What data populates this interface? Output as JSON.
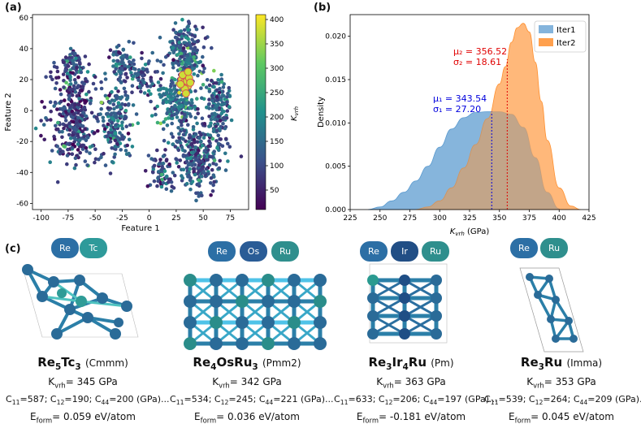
{
  "panel_labels": {
    "a": "(a)",
    "b": "(b)",
    "c": "(c)"
  },
  "chart_data": [
    {
      "type": "scatter",
      "panel": "(a)",
      "xlabel": "Feature 1",
      "ylabel": "Feature 2",
      "xlim": [
        -108,
        92
      ],
      "ylim": [
        -64,
        62
      ],
      "xticks": [
        -100,
        -75,
        -50,
        -25,
        0,
        25,
        50,
        75
      ],
      "yticks": [
        -60,
        -40,
        -20,
        0,
        20,
        40,
        60
      ],
      "colorbar": {
        "label": "K_vrh",
        "range": [
          10,
          410
        ],
        "ticks": [
          50,
          100,
          150,
          200,
          250,
          300,
          350,
          400
        ],
        "colors": [
          "#440154",
          "#3b528b",
          "#21918c",
          "#5ec962",
          "#fde725"
        ]
      },
      "clusters": [
        {
          "cx": -70,
          "cy": -5,
          "rx": 25,
          "ry": 35,
          "n": 320,
          "mean_k": 90
        },
        {
          "cx": -72,
          "cy": 30,
          "rx": 14,
          "ry": 12,
          "n": 80,
          "mean_k": 110
        },
        {
          "cx": -30,
          "cy": -10,
          "rx": 15,
          "ry": 28,
          "n": 170,
          "mean_k": 130
        },
        {
          "cx": -25,
          "cy": 30,
          "rx": 12,
          "ry": 12,
          "n": 80,
          "mean_k": 110
        },
        {
          "cx": -5,
          "cy": 22,
          "rx": 12,
          "ry": 12,
          "n": 60,
          "mean_k": 100
        },
        {
          "cx": 35,
          "cy": 38,
          "rx": 18,
          "ry": 22,
          "n": 220,
          "mean_k": 130
        },
        {
          "cx": 25,
          "cy": 5,
          "rx": 20,
          "ry": 18,
          "n": 200,
          "mean_k": 160
        },
        {
          "cx": 45,
          "cy": -30,
          "rx": 25,
          "ry": 28,
          "n": 300,
          "mean_k": 110
        },
        {
          "cx": 65,
          "cy": 0,
          "rx": 12,
          "ry": 25,
          "n": 140,
          "mean_k": 140
        },
        {
          "cx": 10,
          "cy": -40,
          "rx": 12,
          "ry": 12,
          "n": 60,
          "mean_k": 90
        }
      ],
      "highlight_points": [
        [
          30,
          20
        ],
        [
          32,
          18
        ],
        [
          34,
          22
        ],
        [
          36,
          16
        ],
        [
          33,
          14
        ],
        [
          35,
          19
        ],
        [
          31,
          23
        ],
        [
          37,
          21
        ],
        [
          29,
          17
        ],
        [
          34,
          11
        ],
        [
          36,
          25
        ],
        [
          38,
          18
        ]
      ],
      "highlight_k": 380
    },
    {
      "type": "area",
      "panel": "(b)",
      "xlabel": "K_vrh (GPa)",
      "ylabel": "Density",
      "xlim": [
        225,
        425
      ],
      "ylim": [
        0,
        0.0225
      ],
      "xticks": [
        225,
        250,
        275,
        300,
        325,
        350,
        375,
        400,
        425
      ],
      "yticks": [
        0.0,
        0.005,
        0.01,
        0.015,
        0.02
      ],
      "legend_position": "top-right",
      "series": [
        {
          "name": "Iter1",
          "color": "#5b9bd0",
          "mean": 343.54,
          "std": 27.2,
          "x": [
            240,
            250,
            260,
            270,
            280,
            290,
            300,
            310,
            320,
            330,
            340,
            350,
            360,
            370,
            380,
            390,
            400
          ],
          "y": [
            0.0,
            0.0003,
            0.001,
            0.002,
            0.0033,
            0.005,
            0.0072,
            0.0093,
            0.0106,
            0.0112,
            0.0113,
            0.0113,
            0.011,
            0.0095,
            0.006,
            0.002,
            0.0001
          ]
        },
        {
          "name": "Iter2",
          "color": "#ffa04d",
          "mean": 356.52,
          "std": 18.61,
          "x": [
            280,
            290,
            300,
            310,
            320,
            330,
            340,
            350,
            355,
            360,
            365,
            370,
            375,
            380,
            385,
            390,
            400,
            410,
            418
          ],
          "y": [
            0.0,
            0.0003,
            0.001,
            0.0025,
            0.0048,
            0.0075,
            0.0105,
            0.0145,
            0.0165,
            0.0193,
            0.021,
            0.0215,
            0.0205,
            0.017,
            0.0125,
            0.008,
            0.0025,
            0.0004,
            0.0
          ]
        }
      ],
      "annotations": [
        {
          "text1": "μ₂ = 356.52",
          "text2": "σ₂ = 18.61",
          "color": "#e00000"
        },
        {
          "text1": "μ₁ = 343.54",
          "text2": "σ₁ = 27.20",
          "color": "#0000dd"
        }
      ]
    }
  ],
  "materials": [
    {
      "formula": "Re5Tc3",
      "f1": "Re",
      "s1": "5",
      "f2": "Tc",
      "s2": "3",
      "f3": "",
      "s3": "",
      "space_group": "(Cmmm)",
      "k": "345",
      "c11": "587",
      "c12": "190",
      "c44": "200",
      "eform": "0.059",
      "elements": [
        "Re",
        "Tc"
      ]
    },
    {
      "formula": "Re4OsRu3",
      "f1": "Re",
      "s1": "4",
      "f2": "Os",
      "s2": "",
      "f3": "Ru",
      "s3": "3",
      "space_group": "(Pmm2)",
      "k": "342",
      "c11": "534",
      "c12": "245",
      "c44": "221",
      "eform": "0.036",
      "elements": [
        "Re",
        "Os",
        "Ru"
      ]
    },
    {
      "formula": "Re3Ir4Ru",
      "f1": "Re",
      "s1": "3",
      "f2": "Ir",
      "s2": "4",
      "f3": "Ru",
      "s3": "",
      "space_group": "(Pm)",
      "k": "363",
      "c11": "633",
      "c12": "206",
      "c44": "197",
      "eform": "-0.181",
      "elements": [
        "Re",
        "Ir",
        "Ru"
      ]
    },
    {
      "formula": "Re3Ru",
      "f1": "Re",
      "s1": "3",
      "f2": "Ru",
      "s2": "",
      "f3": "",
      "s3": "",
      "space_group": "(Imma)",
      "k": "353",
      "c11": "539",
      "c12": "264",
      "c44": "209",
      "eform": "0.045",
      "elements": [
        "Re",
        "Ru"
      ]
    }
  ],
  "labels": {
    "k_prefix": "K",
    "k_sub": "vrh",
    "k_unit": "GPa",
    "c11": "C",
    "c11_sub": "11",
    "c12_sub": "12",
    "c44_sub": "44",
    "c_unit": "(GPa)...",
    "e_prefix": "E",
    "e_sub": "form",
    "e_unit": "eV/atom"
  },
  "colors": {
    "Re": "#2c6fa5",
    "Tc": "#2e9a9a",
    "Os": "#2a5c96",
    "Ru": "#2f8f8d",
    "Ir": "#214e85"
  }
}
